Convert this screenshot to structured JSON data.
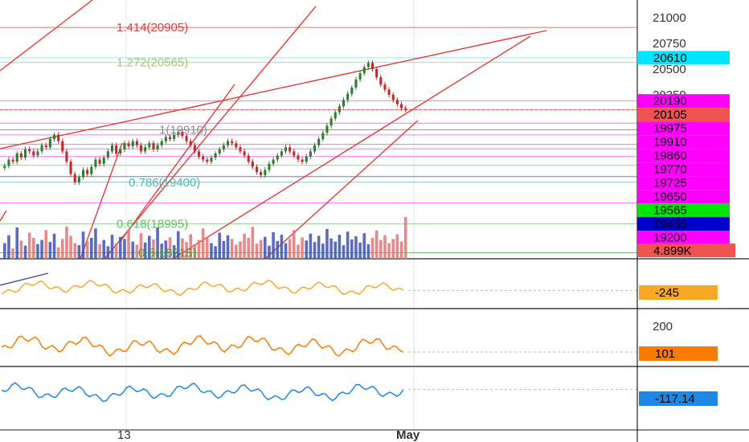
{
  "chart_data": {
    "type": "candlestick",
    "title": "",
    "x_ticks": [
      "13",
      "May"
    ],
    "price_axis": {
      "ticks": [
        "21000",
        "20750",
        "20500",
        "20250"
      ],
      "range": [
        19080,
        21150
      ]
    },
    "fib_levels": [
      {
        "label": "1.414(20905)",
        "value": 20905,
        "color": "#e53935"
      },
      {
        "label": "1.272(20565)",
        "value": 20565,
        "color": "#9ccc65"
      },
      {
        "label": "1(19910)",
        "value": 19910,
        "color": "#8e8e8e"
      },
      {
        "label": "0.786(19400)",
        "value": 19400,
        "color": "#4db6ac"
      },
      {
        "label": "0.618(18995)",
        "value": 18995,
        "color": "#66bb6a"
      },
      {
        "label": "0.5(18715)",
        "value": 18715,
        "color": "#43a047"
      }
    ],
    "price_tags": [
      {
        "label": "20610",
        "value": 20610,
        "color": "#00e5ff",
        "text_color": "#000"
      },
      {
        "label": "20190",
        "value": 20190,
        "color": "#ff00ff",
        "text_color": "#fff"
      },
      {
        "label": "20105",
        "value": 20105,
        "color": "#ef5350",
        "text_color": "#fff"
      },
      {
        "label": "19975",
        "value": 19975,
        "color": "#ff00ff",
        "text_color": "#fff"
      },
      {
        "label": "19910",
        "value": 19910,
        "color": "#ff00ff",
        "text_color": "#fff"
      },
      {
        "label": "19860",
        "value": 19860,
        "color": "#ff00ff",
        "text_color": "#fff"
      },
      {
        "label": "19770",
        "value": 19770,
        "color": "#ff00ff",
        "text_color": "#fff"
      },
      {
        "label": "19725",
        "value": 19725,
        "color": "#ff00ff",
        "text_color": "#fff"
      },
      {
        "label": "19650",
        "value": 19650,
        "color": "#ff00ff",
        "text_color": "#fff"
      },
      {
        "label": "19565",
        "value": 19565,
        "color": "#00e600",
        "text_color": "#000"
      },
      {
        "label": "19455",
        "value": 19455,
        "color": "#0000cc",
        "text_color": "#fff"
      },
      {
        "label": "19200",
        "value": 19200,
        "color": "#ff00ff",
        "text_color": "#fff"
      }
    ],
    "volume_tag": {
      "label": "4.899K",
      "color": "#ef5350"
    },
    "candles_close": [
      19560,
      19620,
      19600,
      19680,
      19640,
      19720,
      19700,
      19660,
      19700,
      19760,
      19740,
      19820,
      19860,
      19800,
      19700,
      19600,
      19480,
      19400,
      19450,
      19520,
      19480,
      19550,
      19620,
      19580,
      19640,
      19700,
      19760,
      19680,
      19720,
      19780,
      19750,
      19800,
      19760,
      19700,
      19740,
      19780,
      19720,
      19760,
      19800,
      19840,
      19820,
      19860,
      19890,
      19850,
      19800,
      19760,
      19700,
      19650,
      19620,
      19600,
      19640,
      19680,
      19720,
      19760,
      19800,
      19780,
      19740,
      19700,
      19660,
      19600,
      19550,
      19500,
      19470,
      19520,
      19580,
      19620,
      19660,
      19700,
      19740,
      19700,
      19660,
      19620,
      19600,
      19650,
      19700,
      19760,
      19820,
      19880,
      19950,
      20020,
      20080,
      20140,
      20200,
      20260,
      20320,
      20400,
      20460,
      20520,
      20560,
      20500,
      20420,
      20350,
      20300,
      20250,
      20200,
      20160,
      20120,
      20105
    ],
    "volume": [
      30,
      45,
      20,
      60,
      35,
      25,
      50,
      40,
      28,
      36,
      55,
      32,
      48,
      22,
      38,
      62,
      44,
      30,
      26,
      52,
      34,
      40,
      58,
      28,
      36,
      24,
      46,
      30,
      42,
      38,
      56,
      33,
      27,
      49,
      31,
      44,
      37,
      60,
      29,
      35,
      41,
      26,
      53,
      39,
      32,
      47,
      28,
      36,
      58,
      42,
      30,
      24,
      50,
      34,
      45,
      38,
      27,
      33,
      48,
      40,
      61,
      29,
      36,
      42,
      25,
      51,
      34,
      46,
      30,
      38,
      55,
      27,
      41,
      35,
      48,
      32,
      44,
      29,
      57,
      39,
      33,
      46,
      26,
      52,
      37,
      43,
      31,
      49,
      28,
      40,
      54,
      36,
      45,
      30,
      38,
      47,
      33,
      80
    ],
    "indicator_1": {
      "label": "-245",
      "color": "#f9a825"
    },
    "indicator_2": {
      "ticks": [
        "200"
      ],
      "label": "101",
      "color": "#f57c00"
    },
    "indicator_3": {
      "label": "-117.14",
      "color": "#1e88e5"
    }
  }
}
